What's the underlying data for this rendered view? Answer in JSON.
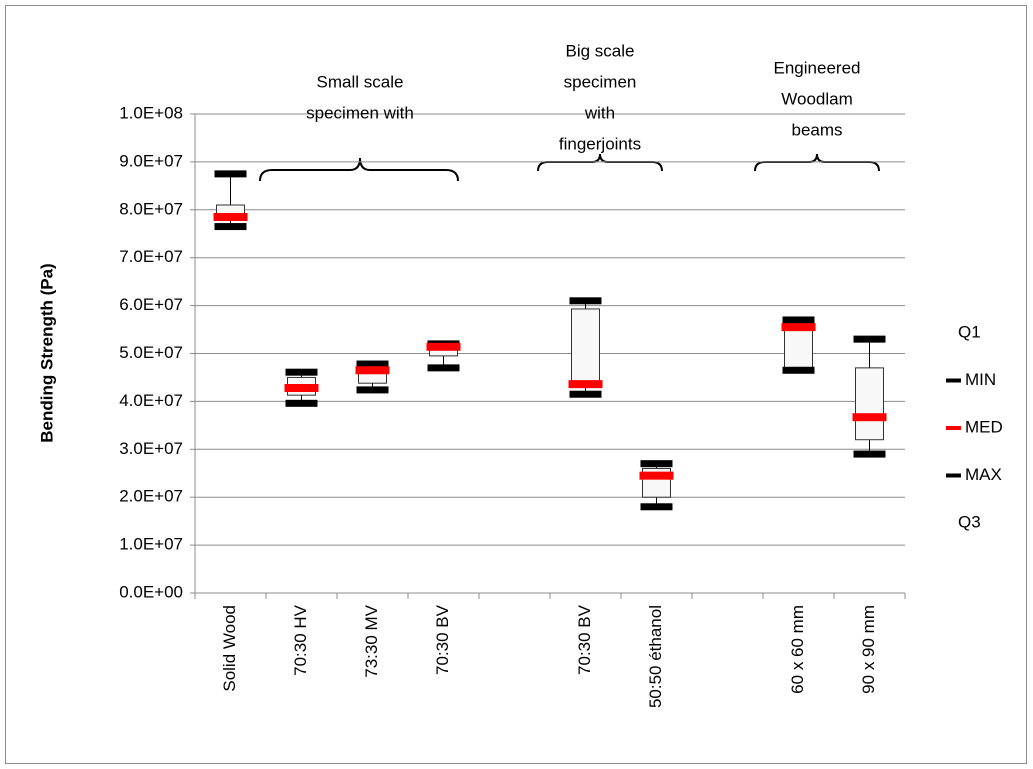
{
  "chart_data": {
    "type": "box",
    "y_label": "Bending Strength (Pa)",
    "categories": [
      "Solid Wood",
      "70:30 HV",
      "73:30 MV",
      "70:30 BV",
      null,
      "70:30 BV",
      "50:50 éthanol",
      null,
      "60 x 60 mm",
      "90 x 90 mm"
    ],
    "series": [
      {
        "name": "Q1",
        "color": null,
        "values": [
          78000000,
          41300000,
          43800000,
          49500000,
          null,
          43200000,
          20000000,
          null,
          47000000,
          32000000
        ]
      },
      {
        "name": "MIN",
        "color": "#000000",
        "values": [
          76500000,
          39600000,
          42400000,
          47000000,
          null,
          41500000,
          18000000,
          null,
          46500000,
          29000000
        ]
      },
      {
        "name": "MED",
        "color": "#ff0000",
        "values": [
          78500000,
          42800000,
          46500000,
          51400000,
          null,
          43600000,
          24500000,
          null,
          55500000,
          36700000
        ]
      },
      {
        "name": "MAX",
        "color": "#000000",
        "values": [
          87500000,
          46100000,
          47800000,
          52000000,
          null,
          61000000,
          27000000,
          null,
          57000000,
          53000000
        ]
      },
      {
        "name": "Q3",
        "color": null,
        "values": [
          81000000,
          45000000,
          47200000,
          51800000,
          null,
          59300000,
          26000000,
          null,
          56000000,
          47000000
        ]
      }
    ],
    "ylim": [
      0,
      100000000
    ],
    "yticks": [
      {
        "value": 0,
        "label": "0.0E+00"
      },
      {
        "value": 10000000,
        "label": "1.0E+07"
      },
      {
        "value": 20000000,
        "label": "2.0E+07"
      },
      {
        "value": 30000000,
        "label": "3.0E+07"
      },
      {
        "value": 40000000,
        "label": "4.0E+07"
      },
      {
        "value": 50000000,
        "label": "5.0E+07"
      },
      {
        "value": 60000000,
        "label": "6.0E+07"
      },
      {
        "value": 70000000,
        "label": "7.0E+07"
      },
      {
        "value": 80000000,
        "label": "8.0E+07"
      },
      {
        "value": 90000000,
        "label": "9.0E+07"
      },
      {
        "value": 100000000,
        "label": "1.0E+08"
      }
    ],
    "grid": true,
    "legend": "right",
    "annotations": [
      {
        "lines": [
          "Small scale",
          "specimen with"
        ]
      },
      {
        "lines": [
          "Big scale",
          "specimen",
          "with",
          "fingerjoints"
        ]
      },
      {
        "lines": [
          "Engineered",
          "Woodlam",
          "beams"
        ]
      }
    ]
  }
}
